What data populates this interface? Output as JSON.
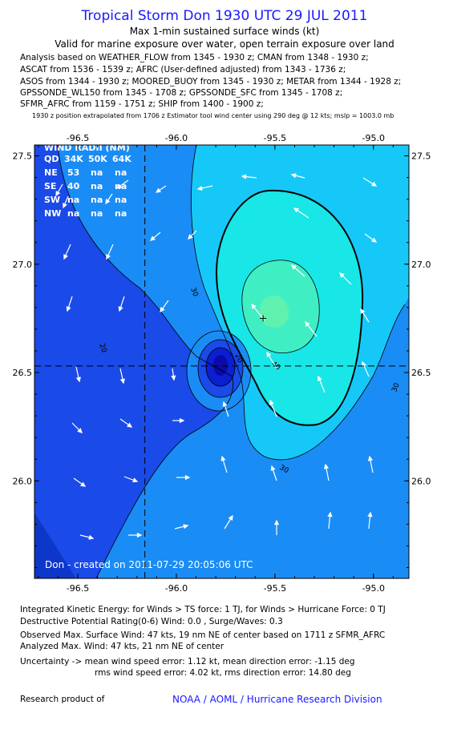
{
  "header": {
    "title": "Tropical Storm Don 1930 UTC 29 JUL 2011",
    "subtitle1": "Max 1-min sustained surface winds (kt)",
    "subtitle2": "Valid for marine exposure over water, open terrain exposure over land"
  },
  "sources": [
    "Analysis based on WEATHER_FLOW from 1345 - 1930 z; CMAN from 1348 - 1930 z;",
    "ASCAT from 1536 - 1539 z; AFRC (User-defined adjusted) from 1343 - 1736 z;",
    "ASOS from 1344 - 1930 z; MOORED_BUOY from 1345 - 1930 z; METAR from 1344 - 1928 z;",
    "GPSSONDE_WL150 from 1345 - 1708 z; GPSSONDE_SFC from 1345 - 1708 z;",
    "SFMR_AFRC from 1159 - 1751 z; SHIP from 1400 - 1900 z;"
  ],
  "extrapolation_note": "1930 z position extrapolated from 1706 z Estimator tool wind center using 290 deg @ 12 kts; mslp = 1003.0 mb",
  "map": {
    "lon_ticks": [
      "-96.5",
      "-96.0",
      "-95.5",
      "-95.0"
    ],
    "lon_tick_values": [
      -96.5,
      -96.0,
      -95.5,
      -95.0
    ],
    "lat_ticks": [
      "27.5",
      "27.0",
      "26.5",
      "26.0"
    ],
    "lat_tick_values": [
      27.5,
      27.0,
      26.5,
      26.0
    ],
    "lon_range": [
      -96.72,
      -94.82
    ],
    "lat_range": [
      25.55,
      27.55
    ],
    "center": {
      "lon": -96.16,
      "lat": 26.53
    },
    "max_wind_location": {
      "lon": -95.56,
      "lat": 26.75
    },
    "contour_labels": [
      "20",
      "30",
      "40",
      "30",
      "20",
      "30"
    ],
    "colors": {
      "lt20": "#1a4ae8",
      "b20_30": "#1a8cf5",
      "b30_40": "#16c8f7",
      "b40_50": "#19e6e6",
      "b50_60": "#40eec4",
      "low_core": "#0a1fd0",
      "low_core2": "#0a0aa8"
    },
    "wind_radii": {
      "title": "WIND RADII (NM)",
      "header": [
        "QD",
        "34K",
        "50K",
        "64K"
      ],
      "rows": [
        [
          "NE",
          "53",
          "na",
          "na"
        ],
        [
          "SE",
          "40",
          "na",
          "na"
        ],
        [
          "SW",
          "na",
          "na",
          "na"
        ],
        [
          "NW",
          "na",
          "na",
          "na"
        ]
      ]
    },
    "created_label": "Don - created on 2011-07-29 20:05:06 UTC"
  },
  "footer": {
    "ike": "Integrated Kinetic Energy: for Winds > TS force: 1 TJ, for Winds > Hurricane Force: 0 TJ",
    "dpr": "Destructive Potential Rating(0-6) Wind: 0.0 , Surge/Waves: 0.3",
    "observed": "Observed Max. Surface Wind: 47 kts, 19 nm NE of center based on 1711 z SFMR_AFRC",
    "analyzed": "Analyzed Max. Wind: 47 kts, 21 nm NE of center",
    "uncert1": "Uncertainty -> mean wind speed error: 1.12 kt, mean direction error: -1.15 deg",
    "uncert2": "rms wind speed error: 4.02 kt, rms direction error: 14.80 deg",
    "research_product": "Research product of",
    "org": "NOAA / AOML / Hurricane Research Division"
  }
}
